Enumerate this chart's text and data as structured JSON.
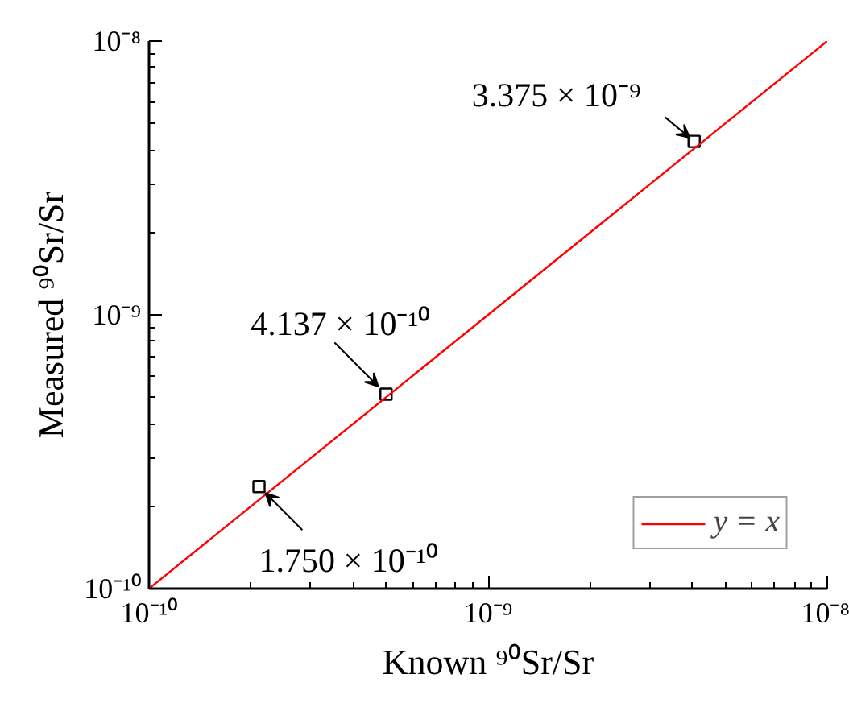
{
  "chart_data": {
    "type": "scatter",
    "xlabel": "Known ⁹⁰Sr/Sr",
    "ylabel": "Measured ⁹⁰Sr/Sr",
    "log": "xy",
    "xlim": [
      1e-10,
      1e-08
    ],
    "ylim": [
      1e-10,
      1e-08
    ],
    "xticks": [
      {
        "value": 1e-10,
        "label": "10⁻¹⁰"
      },
      {
        "value": 1e-09,
        "label": "10⁻⁹"
      },
      {
        "value": 1e-08,
        "label": "10⁻⁸"
      }
    ],
    "yticks": [
      {
        "value": 1e-10,
        "label": "10⁻¹⁰"
      },
      {
        "value": 1e-09,
        "label": "10⁻⁹"
      },
      {
        "value": 1e-08,
        "label": "10⁻⁸"
      }
    ],
    "grid": false,
    "legend": "bottom right",
    "series": [
      {
        "marker": "square",
        "color": "#000000",
        "x": [
          2.11e-10,
          5e-10,
          4.05e-09
        ],
        "values": [
          2.36e-10,
          5.13e-10,
          4.3e-09
        ]
      },
      {
        "type": "line",
        "name": "y = x",
        "color": "#ff0000",
        "line_style": "solid",
        "x": [
          1e-10,
          1e-08
        ],
        "values": [
          1e-10,
          1e-08
        ]
      }
    ],
    "annotations": [
      {
        "text": "1.750 × 10⁻¹⁰",
        "x": 2.11e-10,
        "y": 2.36e-10
      },
      {
        "text": "4.137 × 10⁻¹⁰",
        "x": 5e-10,
        "y": 5.13e-10
      },
      {
        "text": "3.375 × 10⁻⁹",
        "x": 4.05e-09,
        "y": 4.3e-09
      }
    ]
  }
}
